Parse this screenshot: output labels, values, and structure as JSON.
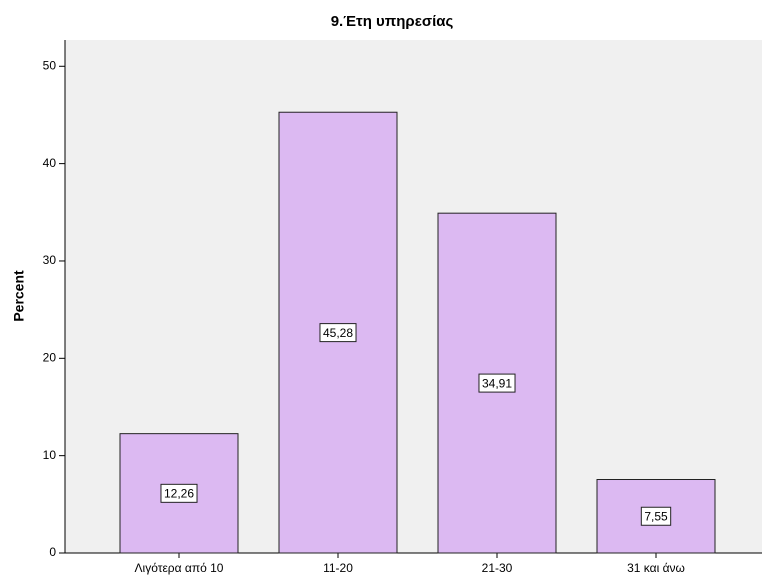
{
  "chart_data": {
    "type": "bar",
    "title": "9.Έτη υπηρεσίας",
    "y_label": "Percent",
    "categories": [
      "Λιγότερα από 10",
      "11-20",
      "21-30",
      "31 και άνω"
    ],
    "values": [
      12.26,
      45.28,
      34.91,
      7.55
    ],
    "value_labels": [
      "12,26",
      "45,28",
      "34,91",
      "7,55"
    ],
    "color": "#dcb9f2",
    "ylim": [
      0,
      52.7
    ],
    "yticks": [
      0,
      10,
      20,
      30,
      40,
      50
    ]
  }
}
